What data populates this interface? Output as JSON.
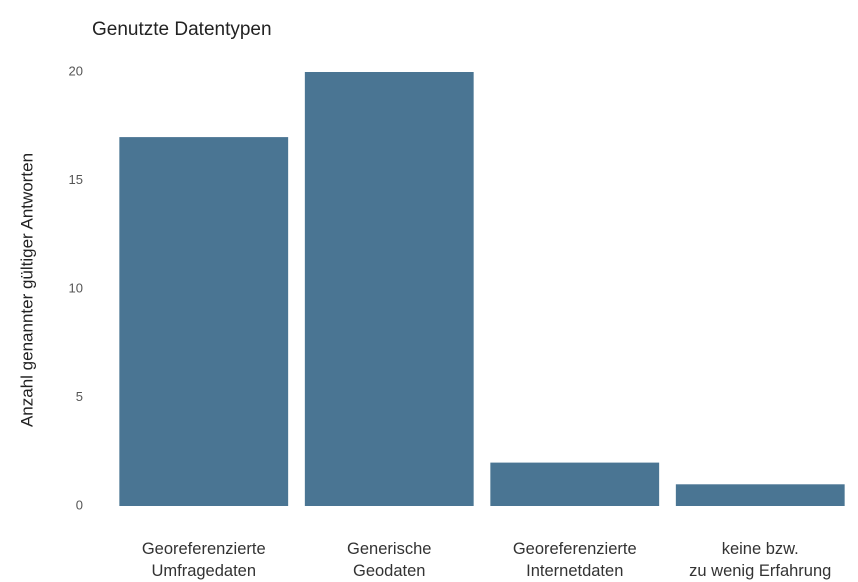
{
  "chart_data": {
    "type": "bar",
    "title": "Genutzte Datentypen",
    "y_label": "Anzahl genannter gültiger Antworten",
    "categories": [
      "Georeferenzierte\nUmfragedaten",
      "Generische\nGeodaten",
      "Georeferenzierte\nInternetdaten",
      "keine bzw.\nzu wenig Erfahrung"
    ],
    "values": [
      17,
      20,
      2,
      1
    ],
    "color": "#4a7593",
    "ylim": [
      0,
      20
    ],
    "yticks": [
      0,
      5,
      10,
      15,
      20
    ],
    "grid": false
  }
}
